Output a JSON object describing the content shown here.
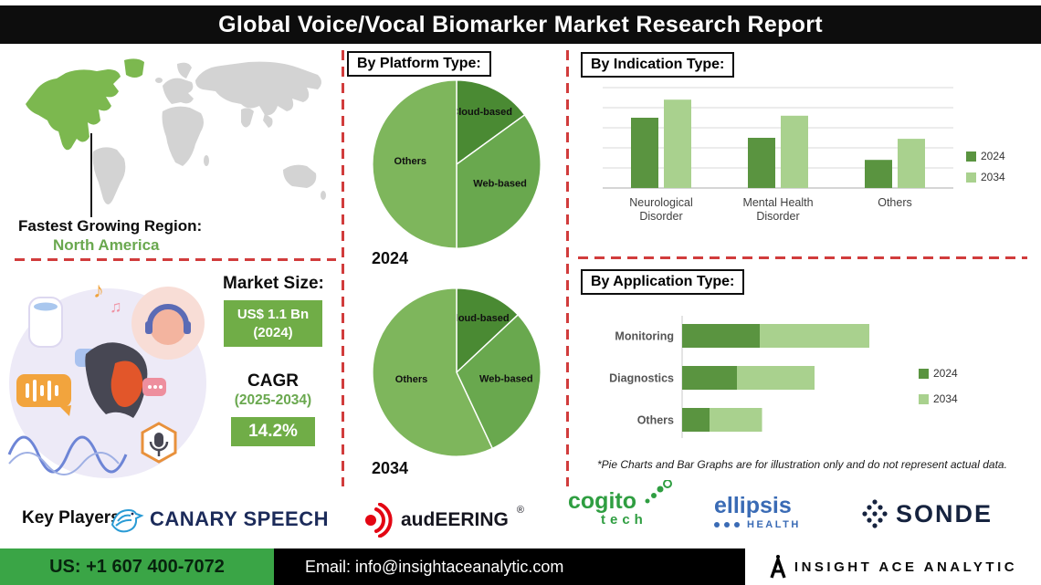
{
  "title": "Global Voice/Vocal Biomarker Market Research Report",
  "colors": {
    "accent_green": "#70ad47",
    "dark_green": "#4a8a33",
    "mid_green": "#69a84e",
    "light_green": "#a9d18e",
    "dash_red": "#d13c3c",
    "banner_black": "#0d0d0d"
  },
  "region": {
    "label": "Fastest Growing Region:",
    "value": "North America"
  },
  "market": {
    "heading": "Market Size:",
    "size_line1": "US$ 1.1 Bn",
    "size_line2": "(2024)",
    "cagr_label": "CAGR",
    "cagr_period": "(2025-2034)",
    "cagr_value": "14.2%"
  },
  "sections": {
    "platform_heading": "By Platform Type:",
    "indication_heading": "By  Indication Type:",
    "application_heading": "By Application Type:"
  },
  "disclaimer": "*Pie Charts and Bar Graphs are for illustration only and do not represent actual data.",
  "key_players": {
    "label": "Key Players:",
    "canary_speech": "CANARY SPEECH",
    "audeering": "audEERING",
    "audeering_reg": "®",
    "cogito_line1": "cogito",
    "cogito_line2": "tech",
    "ellipsis_line1": "ellipsis",
    "ellipsis_line2": "HEALTH",
    "sonde": "SONDE"
  },
  "footer": {
    "phone": "US: +1 607 400-7072",
    "email": "Email: info@insightaceanalytic.com",
    "brand": "INSIGHT ACE ANALYTIC"
  },
  "chart_data": [
    {
      "type": "pie",
      "title": "By Platform Type - 2024",
      "year_label": "2024",
      "labels": [
        "Cloud-based",
        "Web-based",
        "Others"
      ],
      "values": [
        15,
        35,
        50
      ],
      "colors": [
        "#4a8a33",
        "#69a84e",
        "#7eb65c"
      ],
      "label_radius": [
        0.66,
        0.58,
        0.55
      ]
    },
    {
      "type": "pie",
      "title": "By Platform Type - 2034",
      "year_label": "2034",
      "labels": [
        "Cloud-based",
        "Web-based",
        "Others"
      ],
      "values": [
        13,
        30,
        57
      ],
      "colors": [
        "#4a8a33",
        "#69a84e",
        "#7eb65c"
      ],
      "label_radius": [
        0.66,
        0.6,
        0.55
      ]
    },
    {
      "type": "bar",
      "title": "By Indication Type",
      "categories": [
        [
          "Neurological",
          "Disorder"
        ],
        [
          "Mental Health",
          "Disorder"
        ],
        [
          "Others"
        ]
      ],
      "series": [
        {
          "name": "2024",
          "values": [
            70,
            50,
            28
          ],
          "color": "#5a9440"
        },
        {
          "name": "2034",
          "values": [
            88,
            72,
            49
          ],
          "color": "#a9d18e"
        }
      ],
      "ylim": [
        0,
        100
      ],
      "grid": true,
      "legend_position": "right"
    },
    {
      "type": "bar",
      "subtype": "horizontal-stacked",
      "title": "By Application Type",
      "categories": [
        "Monitoring",
        "Diagnostics",
        "Others"
      ],
      "series": [
        {
          "name": "2024",
          "values": [
            34,
            24,
            12
          ],
          "color": "#5a9440"
        },
        {
          "name": "2034",
          "values": [
            48,
            34,
            23
          ],
          "color": "#a9d18e"
        }
      ],
      "xlim": [
        0,
        100
      ],
      "legend_position": "right"
    }
  ]
}
